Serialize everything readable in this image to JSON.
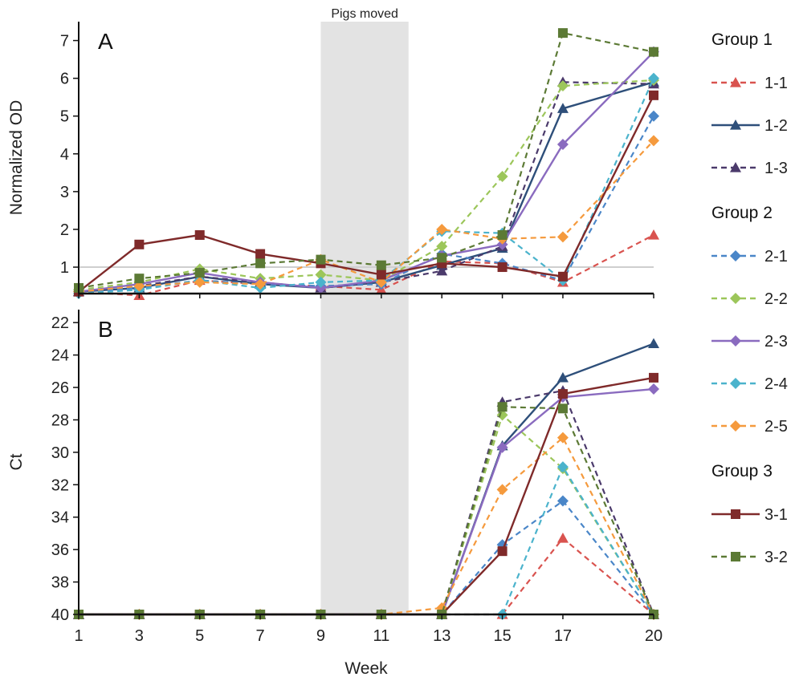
{
  "chart_data": [
    {
      "panel": "A",
      "type": "line",
      "ylabel": "Normalized OD",
      "ylim": [
        0.3,
        7.5
      ],
      "yticks": [
        1,
        2,
        3,
        4,
        5,
        6,
        7
      ],
      "reference_line": 1,
      "shaded_region": {
        "x": [
          9,
          11.9
        ],
        "label": "Pigs moved"
      },
      "x": [
        1,
        3,
        5,
        7,
        9,
        11,
        13,
        15,
        17,
        20
      ],
      "series": [
        {
          "name": "1-1",
          "values": [
            0.35,
            0.25,
            0.65,
            0.55,
            0.5,
            0.4,
            1.15,
            1.1,
            0.6,
            1.85
          ]
        },
        {
          "name": "1-2",
          "values": [
            0.35,
            0.45,
            0.75,
            0.55,
            0.45,
            0.6,
            1.05,
            1.5,
            5.2,
            5.9
          ]
        },
        {
          "name": "1-3",
          "values": [
            0.35,
            0.5,
            0.75,
            0.6,
            0.45,
            0.6,
            0.9,
            1.55,
            5.9,
            5.85
          ]
        },
        {
          "name": "2-1",
          "values": [
            0.35,
            0.45,
            0.65,
            0.55,
            0.5,
            0.55,
            1.35,
            1.1,
            0.65,
            5.0
          ]
        },
        {
          "name": "2-2",
          "values": [
            0.4,
            0.6,
            0.95,
            0.7,
            0.8,
            0.65,
            1.55,
            3.4,
            5.8,
            5.95
          ]
        },
        {
          "name": "2-3",
          "values": [
            0.35,
            0.55,
            0.85,
            0.6,
            0.45,
            0.65,
            1.3,
            1.6,
            4.25,
            6.7
          ]
        },
        {
          "name": "2-4",
          "values": [
            0.3,
            0.4,
            0.65,
            0.45,
            0.6,
            0.65,
            1.95,
            1.9,
            0.65,
            6.0
          ]
        },
        {
          "name": "2-5",
          "values": [
            0.35,
            0.5,
            0.6,
            0.55,
            1.2,
            0.6,
            2.0,
            1.75,
            1.8,
            4.35
          ]
        },
        {
          "name": "3-1",
          "values": [
            0.35,
            1.6,
            1.85,
            1.35,
            1.1,
            0.8,
            1.1,
            1.0,
            0.75,
            5.55
          ]
        },
        {
          "name": "3-2",
          "values": [
            0.45,
            0.7,
            0.85,
            1.1,
            1.2,
            1.05,
            1.25,
            1.85,
            7.2,
            6.7
          ]
        }
      ]
    },
    {
      "panel": "B",
      "type": "line",
      "xlabel": "Week",
      "ylabel": "Ct",
      "ylim": [
        40,
        21.2
      ],
      "yticks": [
        22,
        24,
        26,
        28,
        30,
        32,
        34,
        36,
        38,
        40
      ],
      "x": [
        1,
        3,
        5,
        7,
        9,
        11,
        13,
        15,
        17,
        20
      ],
      "series": [
        {
          "name": "1-1",
          "values": [
            40,
            40,
            40,
            40,
            40,
            40,
            40,
            40,
            35.3,
            40
          ]
        },
        {
          "name": "1-2",
          "values": [
            40,
            40,
            40,
            40,
            40,
            40,
            40,
            29.6,
            25.4,
            23.3
          ]
        },
        {
          "name": "1-3",
          "values": [
            40,
            40,
            40,
            40,
            40,
            40,
            40,
            26.9,
            26.2,
            40
          ]
        },
        {
          "name": "2-1",
          "values": [
            40,
            40,
            40,
            40,
            40,
            40,
            40,
            35.7,
            33.0,
            40
          ]
        },
        {
          "name": "2-2",
          "values": [
            40,
            40,
            40,
            40,
            40,
            40,
            40,
            27.7,
            31.0,
            40
          ]
        },
        {
          "name": "2-3",
          "values": [
            40,
            40,
            40,
            40,
            40,
            40,
            40,
            29.7,
            26.6,
            26.1
          ]
        },
        {
          "name": "2-4",
          "values": [
            40,
            40,
            40,
            40,
            40,
            40,
            40,
            40,
            30.9,
            40
          ]
        },
        {
          "name": "2-5",
          "values": [
            40,
            40,
            40,
            40,
            40,
            40,
            39.6,
            32.3,
            29.1,
            40
          ]
        },
        {
          "name": "3-1",
          "values": [
            40,
            40,
            40,
            40,
            40,
            40,
            40,
            36.1,
            26.4,
            25.4
          ]
        },
        {
          "name": "3-2",
          "values": [
            40,
            40,
            40,
            40,
            40,
            40,
            40,
            27.2,
            27.3,
            40
          ]
        }
      ]
    }
  ],
  "x_tick_labels": [
    "1",
    "3",
    "5",
    "7",
    "9",
    "11",
    "13",
    "15",
    "17",
    "20"
  ],
  "legend": {
    "placement": "right",
    "groups": [
      {
        "title": "Group 1",
        "entries": [
          "1-1",
          "1-2",
          "1-3"
        ]
      },
      {
        "title": "Group 2",
        "entries": [
          "2-1",
          "2-2",
          "2-3",
          "2-4",
          "2-5"
        ]
      },
      {
        "title": "Group 3",
        "entries": [
          "3-1",
          "3-2"
        ]
      }
    ]
  },
  "series_style": {
    "1-1": {
      "color": "#d9534f",
      "dash": "dashed",
      "marker": "triangle"
    },
    "1-2": {
      "color": "#2e4f7a",
      "dash": "solid",
      "marker": "triangle"
    },
    "1-3": {
      "color": "#4b3a6b",
      "dash": "dashed",
      "marker": "triangle"
    },
    "2-1": {
      "color": "#4a86c8",
      "dash": "dashed",
      "marker": "diamond"
    },
    "2-2": {
      "color": "#9cc65a",
      "dash": "dashed",
      "marker": "diamond"
    },
    "2-3": {
      "color": "#8a6bbf",
      "dash": "solid",
      "marker": "diamond"
    },
    "2-4": {
      "color": "#4bb3cc",
      "dash": "dashed",
      "marker": "diamond"
    },
    "2-5": {
      "color": "#f59a3d",
      "dash": "dashed",
      "marker": "diamond"
    },
    "3-1": {
      "color": "#7f2a2a",
      "dash": "solid",
      "marker": "square"
    },
    "3-2": {
      "color": "#5c7a35",
      "dash": "dashed",
      "marker": "square"
    }
  },
  "colors": {
    "shade": "#e3e3e3",
    "refline": "#cfcfcf",
    "axis": "#111111"
  }
}
